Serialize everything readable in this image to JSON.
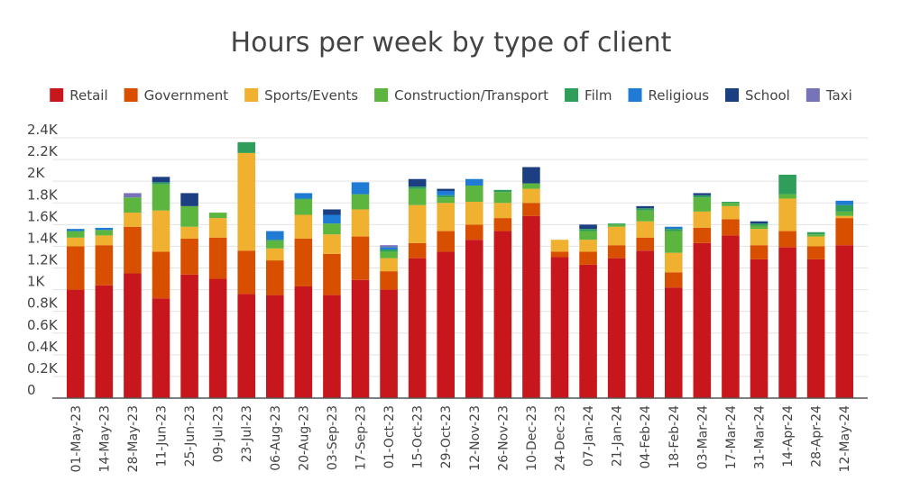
{
  "chart_data": {
    "type": "bar",
    "stacked": true,
    "title": "Hours per week by type of client",
    "legend_position": "top",
    "grid": true,
    "ylim": [
      0,
      2400
    ],
    "y_ticks": [
      {
        "value": 0,
        "label": "0"
      },
      {
        "value": 200,
        "label": "0.2K"
      },
      {
        "value": 400,
        "label": "0.4K"
      },
      {
        "value": 600,
        "label": "0.6K"
      },
      {
        "value": 800,
        "label": "0.8K"
      },
      {
        "value": 1000,
        "label": "1K"
      },
      {
        "value": 1200,
        "label": "1.2K"
      },
      {
        "value": 1400,
        "label": "1.4K"
      },
      {
        "value": 1600,
        "label": "1.6K"
      },
      {
        "value": 1800,
        "label": "1.8K"
      },
      {
        "value": 2000,
        "label": "2K"
      },
      {
        "value": 2200,
        "label": "2.2K"
      },
      {
        "value": 2400,
        "label": "2.4K"
      }
    ],
    "categories": [
      "01-May-23",
      "14-May-23",
      "28-May-23",
      "11-Jun-23",
      "25-Jun-23",
      "09-Jul-23",
      "23-Jul-23",
      "06-Aug-23",
      "20-Aug-23",
      "03-Sep-23",
      "17-Sep-23",
      "01-Oct-23",
      "15-Oct-23",
      "29-Oct-23",
      "12-Nov-23",
      "26-Nov-23",
      "10-Dec-23",
      "24-Dec-23",
      "07-Jan-24",
      "21-Jan-24",
      "04-Feb-24",
      "18-Feb-24",
      "03-Mar-24",
      "17-Mar-24",
      "31-Mar-24",
      "14-Apr-24",
      "28-Apr-24",
      "12-May-24"
    ],
    "series": [
      {
        "name": "Retail",
        "color": "#c8161d",
        "values": [
          1000,
          1040,
          1150,
          920,
          1140,
          1100,
          960,
          950,
          1030,
          950,
          1090,
          1000,
          1290,
          1350,
          1460,
          1540,
          1680,
          1300,
          1230,
          1290,
          1360,
          1020,
          1430,
          1500,
          1280,
          1390,
          1280,
          1410
        ]
      },
      {
        "name": "Government",
        "color": "#d94f00",
        "values": [
          400,
          370,
          430,
          430,
          330,
          380,
          400,
          320,
          440,
          380,
          400,
          170,
          140,
          190,
          140,
          120,
          120,
          50,
          120,
          120,
          120,
          140,
          140,
          150,
          130,
          150,
          120,
          250
        ]
      },
      {
        "name": "Sports/Events",
        "color": "#f0b030",
        "values": [
          80,
          90,
          130,
          380,
          110,
          180,
          900,
          110,
          220,
          180,
          250,
          120,
          350,
          260,
          210,
          140,
          130,
          110,
          110,
          170,
          150,
          180,
          150,
          120,
          150,
          300,
          90,
          20
        ]
      },
      {
        "name": "Construction/Transport",
        "color": "#5bb53f",
        "values": [
          60,
          50,
          140,
          240,
          190,
          50,
          0,
          70,
          140,
          100,
          140,
          60,
          150,
          50,
          150,
          100,
          50,
          0,
          80,
          20,
          100,
          200,
          130,
          30,
          30,
          40,
          20,
          40
        ]
      },
      {
        "name": "Film",
        "color": "#2e9e5a",
        "values": [
          0,
          0,
          0,
          20,
          0,
          0,
          100,
          10,
          10,
          0,
          0,
          20,
          20,
          20,
          0,
          20,
          0,
          0,
          20,
          10,
          20,
          20,
          20,
          10,
          20,
          180,
          20,
          60
        ]
      },
      {
        "name": "Religious",
        "color": "#1f7bd4",
        "values": [
          20,
          20,
          0,
          0,
          0,
          0,
          0,
          80,
          50,
          80,
          110,
          20,
          0,
          40,
          60,
          0,
          0,
          0,
          0,
          0,
          0,
          20,
          0,
          0,
          0,
          0,
          0,
          40
        ]
      },
      {
        "name": "School",
        "color": "#1b3f80",
        "values": [
          0,
          0,
          0,
          50,
          120,
          0,
          0,
          0,
          0,
          50,
          0,
          0,
          70,
          20,
          0,
          0,
          150,
          0,
          40,
          0,
          20,
          0,
          20,
          0,
          20,
          0,
          0,
          0
        ]
      },
      {
        "name": "Taxi",
        "color": "#7673b8",
        "values": [
          0,
          0,
          40,
          0,
          0,
          0,
          0,
          0,
          0,
          0,
          0,
          20,
          0,
          0,
          0,
          0,
          0,
          0,
          0,
          0,
          0,
          0,
          0,
          0,
          0,
          0,
          0,
          0
        ]
      }
    ]
  }
}
